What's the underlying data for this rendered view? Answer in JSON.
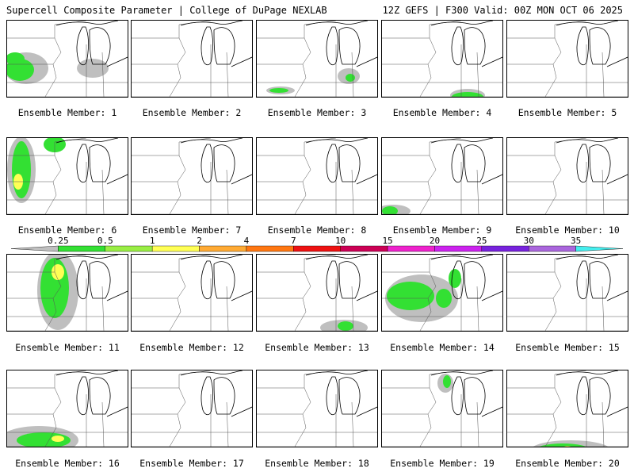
{
  "header": {
    "title": "Supercell Composite Parameter | College of DuPage NEXLAB",
    "run_info": "12Z GEFS | F300 Valid: 00Z MON OCT 06 2025"
  },
  "members": [
    {
      "label": "Ensemble Member: 1",
      "level": 0.4
    },
    {
      "label": "Ensemble Member: 2",
      "level": 0.0
    },
    {
      "label": "Ensemble Member: 3",
      "level": 0.1
    },
    {
      "label": "Ensemble Member: 4",
      "level": 0.15
    },
    {
      "label": "Ensemble Member: 5",
      "level": 0.0
    },
    {
      "label": "Ensemble Member: 6",
      "level": 0.5
    },
    {
      "label": "Ensemble Member: 7",
      "level": 0.0
    },
    {
      "label": "Ensemble Member: 8",
      "level": 0.0
    },
    {
      "label": "Ensemble Member: 9",
      "level": 0.05
    },
    {
      "label": "Ensemble Member: 10",
      "level": 0.0
    },
    {
      "label": "Ensemble Member: 11",
      "level": 0.6
    },
    {
      "label": "Ensemble Member: 12",
      "level": 0.0
    },
    {
      "label": "Ensemble Member: 13",
      "level": 0.1
    },
    {
      "label": "Ensemble Member: 14",
      "level": 0.4
    },
    {
      "label": "Ensemble Member: 15",
      "level": 0.0
    },
    {
      "label": "Ensemble Member: 16",
      "level": 0.3
    },
    {
      "label": "Ensemble Member: 17",
      "level": 0.0
    },
    {
      "label": "Ensemble Member: 18",
      "level": 0.0
    },
    {
      "label": "Ensemble Member: 19",
      "level": 0.05
    },
    {
      "label": "Ensemble Member: 20",
      "level": 0.2
    }
  ],
  "colorbar": {
    "labels": [
      "0.25",
      "0.5",
      "1",
      "2",
      "4",
      "7",
      "10",
      "15",
      "20",
      "25",
      "30",
      "35"
    ],
    "colors": [
      "#bfbfbf",
      "#33e033",
      "#99ee44",
      "#ffff55",
      "#ffaa33",
      "#ff7711",
      "#ee1111",
      "#cc0055",
      "#ee22cc",
      "#cc22ee",
      "#7722dd",
      "#aa66dd",
      "#44eeee"
    ]
  }
}
